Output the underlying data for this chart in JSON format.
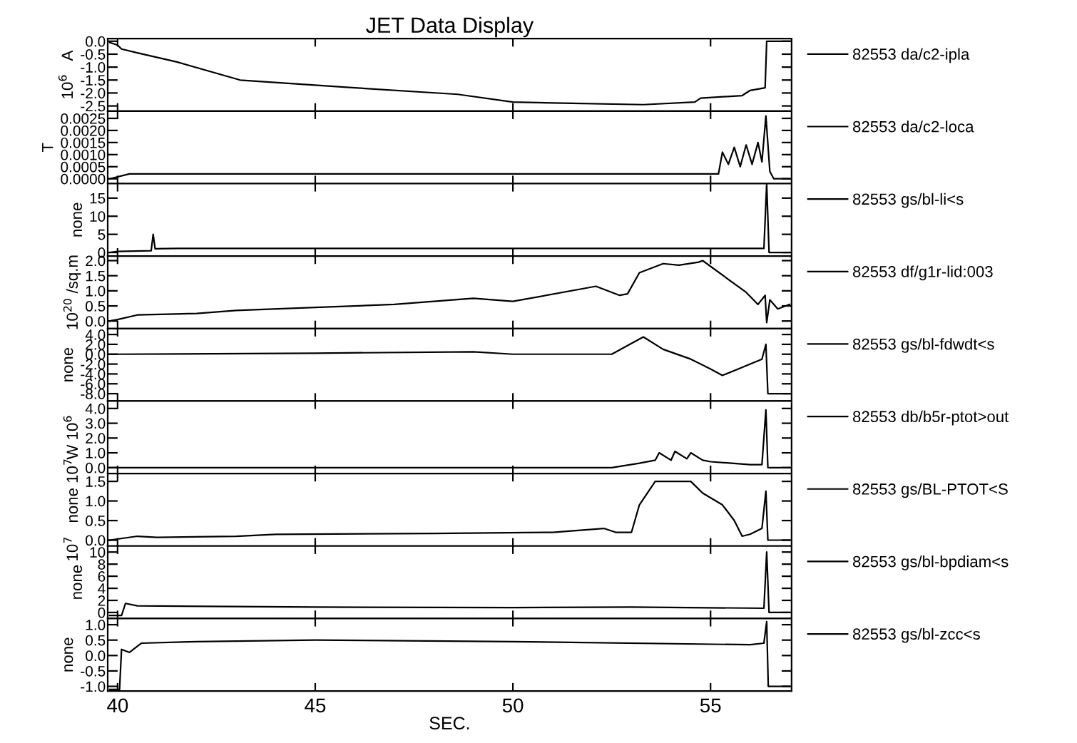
{
  "chart_data": [
    {
      "type": "line",
      "title": "JET Data Display",
      "ylabel": "10$^{6}$   A",
      "xlim": [
        39.75,
        57.05
      ],
      "xticks": [
        40,
        45,
        50,
        55
      ],
      "ylim": [
        -2.7,
        0.1
      ],
      "yticks": [
        {
          "value": 0.0,
          "label": "0.0"
        },
        {
          "value": -0.5,
          "label": "-0.5"
        },
        {
          "value": -1.0,
          "label": "-1.0"
        },
        {
          "value": -1.5,
          "label": "-1.5"
        },
        {
          "value": -2.0,
          "label": "-2.0"
        },
        {
          "value": -2.5,
          "label": "-2.5"
        }
      ],
      "tick_labels": "y",
      "legend": "right",
      "x": [
        39.8,
        40.0,
        40.1,
        40.5,
        41.5,
        43.1,
        46.0,
        48.6,
        50.0,
        51.5,
        53.3,
        54.6,
        54.75,
        55.8,
        56.0,
        56.38,
        56.42,
        57.0
      ],
      "series": [
        {
          "name": "82553 da/c2-ipla",
          "color": "#000000",
          "values": [
            -0.05,
            -0.15,
            -0.3,
            -0.45,
            -0.8,
            -1.5,
            -1.8,
            -2.05,
            -2.35,
            -2.4,
            -2.45,
            -2.35,
            -2.2,
            -2.1,
            -1.9,
            -1.8,
            0.0,
            0.0
          ]
        }
      ]
    },
    {
      "type": "line",
      "ylabel": "T",
      "xlim": [
        39.75,
        57.05
      ],
      "xticks": [
        40,
        45,
        50,
        55
      ],
      "ylim": [
        -0.0002,
        0.0028
      ],
      "yticks": [
        {
          "value": 0.0,
          "label": "0.0000"
        },
        {
          "value": 0.0005,
          "label": "0.0005"
        },
        {
          "value": 0.001,
          "label": "0.0010"
        },
        {
          "value": 0.0015,
          "label": "0.0015"
        },
        {
          "value": 0.002,
          "label": "0.0020"
        },
        {
          "value": 0.0025,
          "label": "0.0025"
        }
      ],
      "tick_labels": "y",
      "legend": "right",
      "x": [
        39.8,
        40.3,
        45.0,
        50.0,
        55.2,
        55.3,
        55.45,
        55.6,
        55.75,
        55.9,
        56.05,
        56.2,
        56.3,
        56.4,
        56.5,
        56.6,
        57.0
      ],
      "series": [
        {
          "name": "82553 da/c2-loca",
          "color": "#000000",
          "values": [
            0.0,
            0.0002,
            0.0002,
            0.0002,
            0.0002,
            0.0011,
            0.0006,
            0.0013,
            0.0005,
            0.0014,
            0.0006,
            0.0015,
            0.0007,
            0.0026,
            0.0003,
            0.0,
            0.0
          ]
        }
      ]
    },
    {
      "type": "line",
      "ylabel": "none",
      "xlim": [
        39.75,
        57.05
      ],
      "xticks": [
        40,
        45,
        50,
        55
      ],
      "ylim": [
        -1,
        19
      ],
      "yticks": [
        0,
        5,
        10,
        15
      ],
      "tick_labels": "y",
      "legend": "right",
      "x": [
        39.8,
        40.0,
        40.85,
        40.9,
        40.95,
        41.5,
        45.0,
        50.0,
        56.35,
        56.42,
        56.48,
        57.0
      ],
      "series": [
        {
          "name": "82553 gs/bl-li<s",
          "color": "#000000",
          "values": [
            0.0,
            0.3,
            0.5,
            5.0,
            1.0,
            1.1,
            1.1,
            1.1,
            1.1,
            19.0,
            0.0,
            0.0
          ]
        }
      ]
    },
    {
      "type": "line",
      "ylabel": "10$^{20}$ /sq.m",
      "xlim": [
        39.75,
        57.05
      ],
      "xticks": [
        40,
        45,
        50,
        55
      ],
      "ylim": [
        -0.25,
        2.15
      ],
      "yticks": [
        {
          "value": 0.0,
          "label": "0.0"
        },
        {
          "value": 0.5,
          "label": "0.5"
        },
        {
          "value": 1.0,
          "label": "1.0"
        },
        {
          "value": 1.5,
          "label": "1.5"
        },
        {
          "value": 2.0,
          "label": "2.0"
        }
      ],
      "tick_labels": "y",
      "legend": "right",
      "x": [
        39.8,
        40.0,
        40.5,
        42.0,
        43.0,
        45.0,
        47.0,
        49.0,
        50.0,
        52.1,
        52.7,
        52.9,
        53.2,
        53.8,
        54.2,
        54.7,
        54.8,
        55.9,
        56.2,
        56.38,
        56.42,
        56.5,
        56.7,
        57.0
      ],
      "series": [
        {
          "name": "82553 df/g1r-lid:003",
          "color": "#000000",
          "values": [
            0.0,
            0.05,
            0.2,
            0.25,
            0.35,
            0.45,
            0.55,
            0.75,
            0.65,
            1.15,
            0.85,
            0.9,
            1.6,
            1.9,
            1.85,
            1.95,
            2.0,
            0.95,
            0.55,
            0.85,
            -0.05,
            0.7,
            0.4,
            0.55
          ]
        }
      ]
    },
    {
      "type": "line",
      "ylabel": "none",
      "xlim": [
        39.75,
        57.05
      ],
      "xticks": [
        40,
        45,
        50,
        55
      ],
      "ylim": [
        -9.5,
        5.2
      ],
      "yticks": [
        {
          "value": 4.0,
          "label": "4.0"
        },
        {
          "value": 2.0,
          "label": "2.0"
        },
        {
          "value": 0.0,
          "label": "0.0"
        },
        {
          "value": -2.0,
          "label": "-2.0"
        },
        {
          "value": -4.0,
          "label": "-4.0"
        },
        {
          "value": -6.0,
          "label": "-6.0"
        },
        {
          "value": -8.0,
          "label": "-8.0"
        }
      ],
      "tick_labels": "y",
      "legend": "right",
      "x": [
        39.8,
        40.0,
        45.0,
        49.0,
        50.0,
        52.5,
        53.3,
        53.8,
        54.5,
        55.0,
        55.3,
        55.7,
        56.3,
        56.4,
        56.45,
        57.0
      ],
      "series": [
        {
          "name": "82553 gs/bl-fdwdt<s",
          "color": "#000000",
          "values": [
            0.0,
            0.0,
            0.2,
            0.5,
            0.0,
            0.0,
            3.5,
            1.0,
            -1.0,
            -3.0,
            -4.3,
            -3.0,
            -1.0,
            2.0,
            -8.0,
            -8.0
          ]
        }
      ]
    },
    {
      "type": "line",
      "ylabel": "W 10$^{6}$",
      "xlim": [
        39.75,
        57.05
      ],
      "xticks": [
        40,
        45,
        50,
        55
      ],
      "ylim": [
        -0.4,
        4.5
      ],
      "yticks": [
        {
          "value": 0.0,
          "label": "0.0"
        },
        {
          "value": 1.0,
          "label": "1.0"
        },
        {
          "value": 2.0,
          "label": "2.0"
        },
        {
          "value": 3.0,
          "label": "3.0"
        },
        {
          "value": 4.0,
          "label": "4.0"
        }
      ],
      "tick_labels": "y",
      "legend": "right",
      "x": [
        39.8,
        45.0,
        50.0,
        52.5,
        53.2,
        53.6,
        53.7,
        54.0,
        54.1,
        54.4,
        54.5,
        54.8,
        55.0,
        56.0,
        56.3,
        56.4,
        56.45,
        57.0
      ],
      "series": [
        {
          "name": "82553 db/b5r-ptot>out",
          "color": "#000000",
          "values": [
            0.0,
            0.0,
            0.0,
            0.0,
            0.3,
            0.5,
            1.0,
            0.5,
            1.1,
            0.6,
            1.0,
            0.5,
            0.4,
            0.2,
            0.2,
            3.9,
            0.0,
            0.0
          ]
        }
      ]
    },
    {
      "type": "line",
      "ylabel": "10$^{7}$   none 10$^{7}$",
      "xlim": [
        39.75,
        57.05
      ],
      "xticks": [
        40,
        45,
        50,
        55
      ],
      "ylim": [
        -0.15,
        1.7
      ],
      "yticks": [
        {
          "value": 0.0,
          "label": "0.0"
        },
        {
          "value": 0.5,
          "label": "0.5"
        },
        {
          "value": 1.0,
          "label": "1.0"
        },
        {
          "value": 1.5,
          "label": "1.5"
        }
      ],
      "tick_labels": "y",
      "legend": "right",
      "x": [
        39.8,
        40.5,
        41.0,
        43.0,
        44.0,
        48.0,
        51.0,
        52.3,
        52.6,
        53.0,
        53.2,
        53.4,
        53.6,
        54.5,
        54.8,
        55.3,
        55.6,
        55.8,
        56.0,
        56.3,
        56.4,
        56.45,
        57.0
      ],
      "series": [
        {
          "name": "82553 gs/BL-PTOT<S",
          "color": "#000000",
          "values": [
            0.0,
            0.1,
            0.07,
            0.1,
            0.15,
            0.17,
            0.2,
            0.3,
            0.2,
            0.2,
            0.9,
            1.2,
            1.5,
            1.5,
            1.2,
            0.9,
            0.5,
            0.1,
            0.15,
            0.3,
            1.25,
            0.0,
            0.0
          ]
        }
      ]
    },
    {
      "type": "line",
      "ylabel": "none",
      "xlim": [
        39.75,
        57.05
      ],
      "xticks": [
        40,
        45,
        50,
        55
      ],
      "ylim": [
        -1.0,
        11.0
      ],
      "yticks": [
        0,
        2,
        4,
        6,
        8,
        10
      ],
      "tick_labels": "y",
      "legend": "right",
      "x": [
        39.8,
        40.1,
        40.2,
        40.5,
        45.0,
        50.0,
        53.0,
        56.35,
        56.42,
        56.48,
        57.0
      ],
      "series": [
        {
          "name": "82553 gs/bl-bpdiam<s",
          "color": "#000000",
          "values": [
            -0.5,
            -0.5,
            1.5,
            1.1,
            0.9,
            0.8,
            0.9,
            0.7,
            10.0,
            0.0,
            0.0
          ]
        }
      ]
    },
    {
      "type": "line",
      "xlabel": "SEC.",
      "ylabel": "none",
      "xlim": [
        39.75,
        57.05
      ],
      "xticks": [
        40,
        45,
        50,
        55
      ],
      "ylim": [
        -1.15,
        1.2
      ],
      "yticks": [
        {
          "value": 1.0,
          "label": "1.0"
        },
        {
          "value": 0.5,
          "label": "0.5"
        },
        {
          "value": 0.0,
          "label": "0.0"
        },
        {
          "value": -0.5,
          "label": "-0.5"
        },
        {
          "value": -1.0,
          "label": "-1.0"
        }
      ],
      "legend": "right",
      "x": [
        39.8,
        40.05,
        40.1,
        40.3,
        40.6,
        42.0,
        45.0,
        50.0,
        56.0,
        56.35,
        56.42,
        56.46,
        57.0
      ],
      "series": [
        {
          "name": "82553 gs/bl-zcc<s",
          "color": "#000000",
          "values": [
            -1.1,
            -1.1,
            0.2,
            0.1,
            0.4,
            0.45,
            0.5,
            0.45,
            0.35,
            0.4,
            1.1,
            -1.0,
            -1.0
          ]
        }
      ]
    }
  ]
}
